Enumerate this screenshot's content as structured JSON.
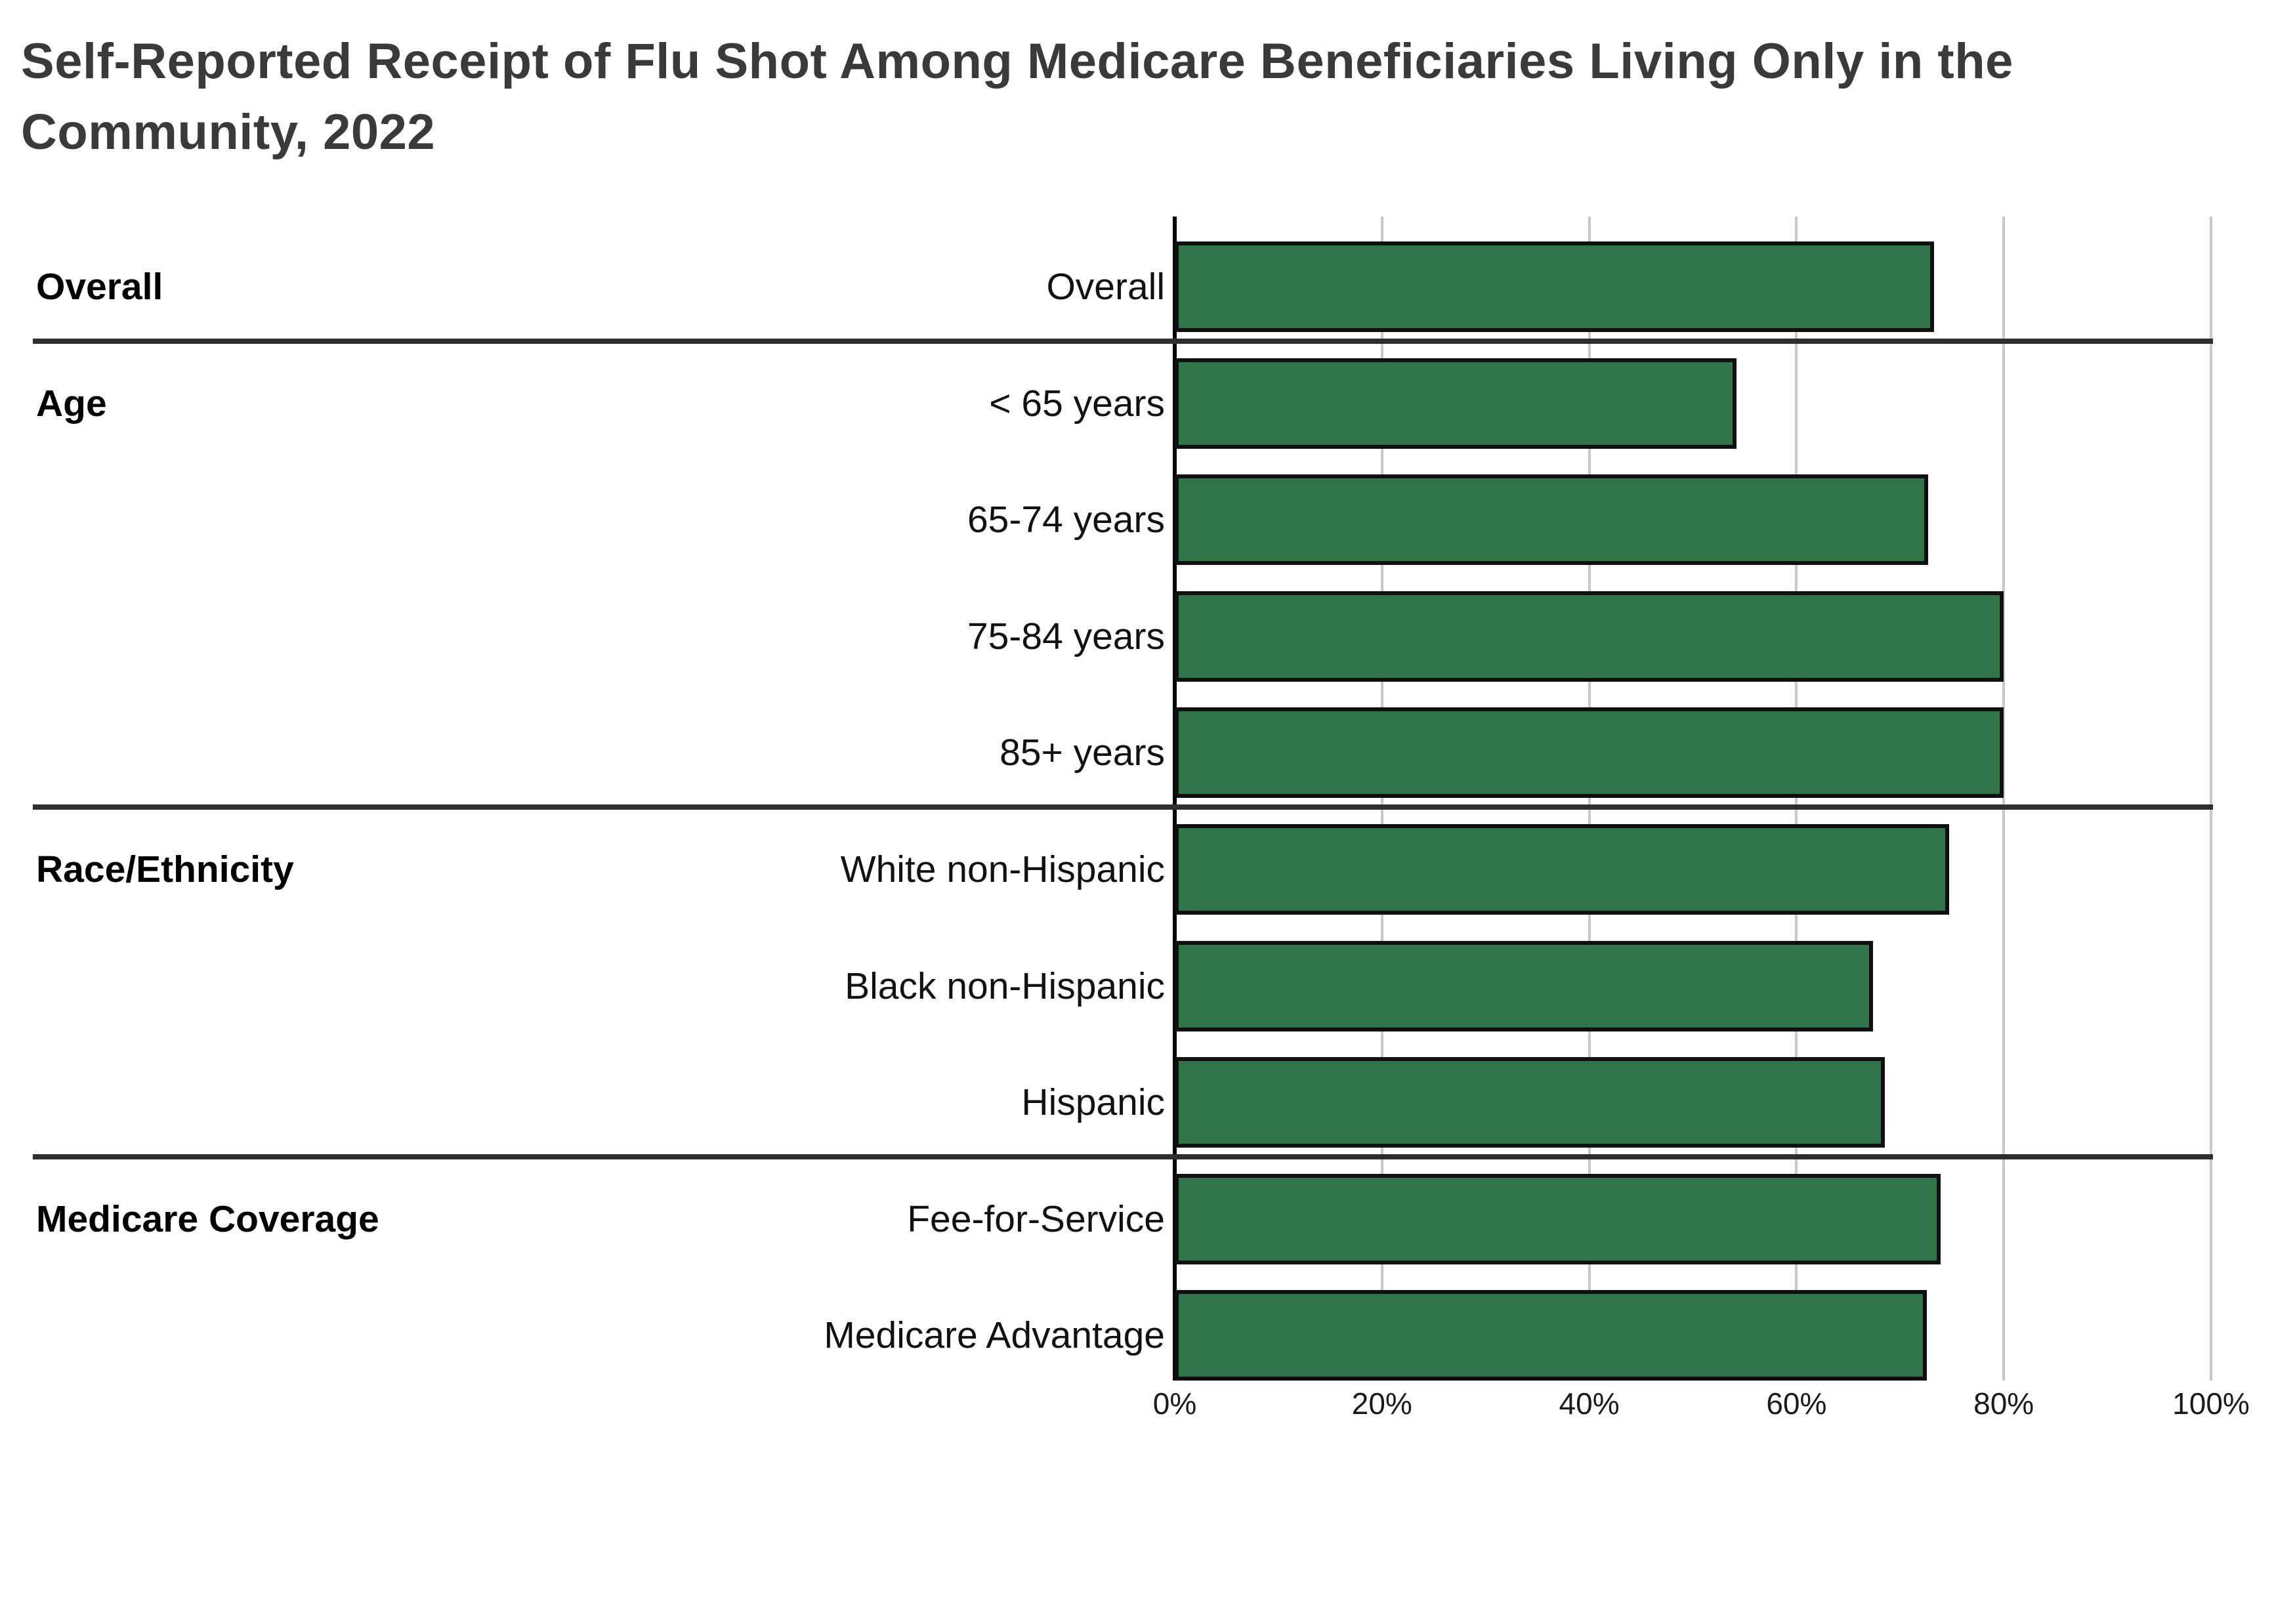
{
  "title": {
    "line1": "Self-Reported Receipt of Flu Shot Among Medicare Beneficiaries Living Only in the",
    "line2": "Community, 2022"
  },
  "colors": {
    "bar_fill": "#32744a",
    "bar_border": "#101010",
    "gridline": "#c9c9c9",
    "axis_line": "#000000",
    "separator_line": "#2e2e2e",
    "title_text": "#3a3a3a",
    "label_text": "#111111"
  },
  "chart_data": {
    "type": "bar",
    "orientation": "horizontal",
    "title": "Self-Reported Receipt of Flu Shot Among Medicare Beneficiaries Living Only in the Community, 2022",
    "xlabel": "",
    "ylabel": "",
    "xlim": [
      0,
      100
    ],
    "x_tick_values": [
      0,
      20,
      40,
      60,
      80,
      100
    ],
    "x_tick_labels": [
      "0%",
      "20%",
      "40%",
      "60%",
      "80%",
      "100%"
    ],
    "grid": true,
    "legend": false,
    "unit": "percent",
    "groups": [
      {
        "label": "Overall",
        "rows": [
          {
            "label": "Overall",
            "value": 73.3
          }
        ]
      },
      {
        "label": "Age",
        "rows": [
          {
            "label": "< 65 years",
            "value": 54.2
          },
          {
            "label": "65-74 years",
            "value": 72.7
          },
          {
            "label": "75-84 years",
            "value": 80.0
          },
          {
            "label": "85+ years",
            "value": 80.0
          }
        ]
      },
      {
        "label": "Race/Ethnicity",
        "rows": [
          {
            "label": "White non-Hispanic",
            "value": 74.7
          },
          {
            "label": "Black non-Hispanic",
            "value": 67.4
          },
          {
            "label": "Hispanic",
            "value": 68.5
          }
        ]
      },
      {
        "label": "Medicare Coverage",
        "rows": [
          {
            "label": "Fee-for-Service",
            "value": 73.9
          },
          {
            "label": "Medicare Advantage",
            "value": 72.6
          }
        ]
      }
    ]
  }
}
